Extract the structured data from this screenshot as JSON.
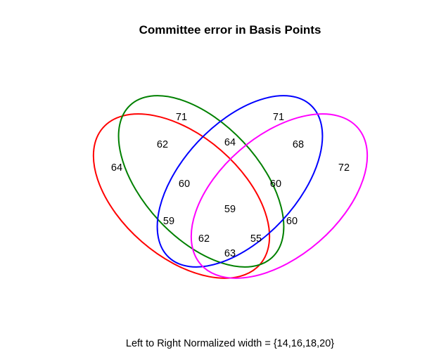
{
  "title": "Committee error in Basis Points",
  "caption": "Left to Right Normalized width = {14,16,18,20}",
  "sets": [
    {
      "color": "#ff0000"
    },
    {
      "color": "#008000"
    },
    {
      "color": "#0000ff"
    },
    {
      "color": "#ff00ff"
    }
  ],
  "regions": {
    "A": "64",
    "B": "71",
    "C": "71",
    "D": "72",
    "AB": "62",
    "BC": "64",
    "CD": "68",
    "ABC": "60",
    "BCD": "60",
    "ABCD": "59",
    "AC": "59",
    "BD": "60",
    "ACD": "62",
    "ABD": "55",
    "AD": "63"
  }
}
